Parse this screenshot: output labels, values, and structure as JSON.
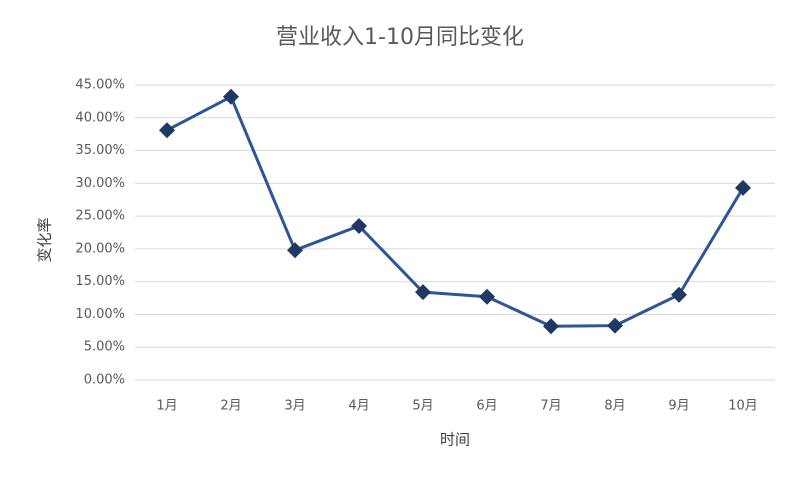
{
  "chart_data": {
    "type": "line",
    "title": "营业收入1-10月同比变化",
    "x_label": "时间",
    "y_label": "变化率",
    "categories": [
      "1月",
      "2月",
      "3月",
      "4月",
      "5月",
      "6月",
      "7月",
      "8月",
      "9月",
      "10月"
    ],
    "series": [
      {
        "name": "变化率",
        "color": "#2f5597",
        "marker_color": "#1f3864",
        "values": [
          38.1,
          43.2,
          19.8,
          23.5,
          13.4,
          12.7,
          8.2,
          8.3,
          13.0,
          29.3
        ]
      }
    ],
    "ylim": [
      0,
      45
    ],
    "yticks": [
      {
        "value": 0,
        "label": "0.00%"
      },
      {
        "value": 5,
        "label": "5.00%"
      },
      {
        "value": 10,
        "label": "10.00%"
      },
      {
        "value": 15,
        "label": "15.00%"
      },
      {
        "value": 20,
        "label": "20.00%"
      },
      {
        "value": 25,
        "label": "25.00%"
      },
      {
        "value": 30,
        "label": "30.00%"
      },
      {
        "value": 35,
        "label": "35.00%"
      },
      {
        "value": 40,
        "label": "40.00%"
      },
      {
        "value": 45,
        "label": "45.00%"
      }
    ],
    "grid": true
  }
}
